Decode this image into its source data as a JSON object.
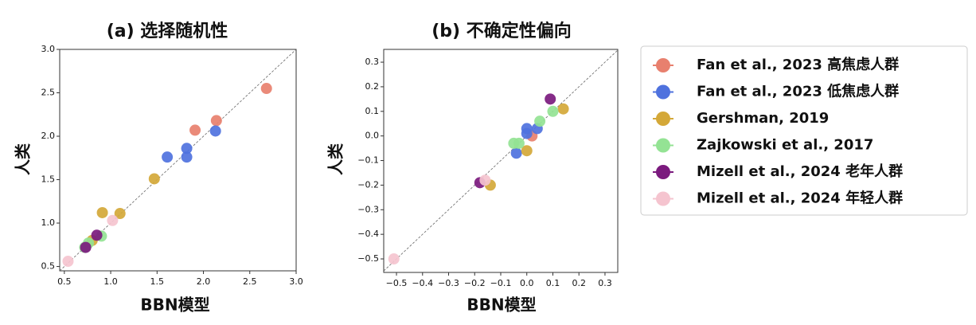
{
  "chart_data": [
    {
      "type": "scatter",
      "title": "(a) 选择随机性",
      "x_label": "BBN模型",
      "y_label": "人类",
      "xlim": [
        0.45,
        3.0
      ],
      "ylim": [
        0.45,
        3.0
      ],
      "xticks": [
        0.5,
        {
          "value": 1,
          "label": "1.0"
        },
        1.5,
        {
          "value": 2,
          "label": "2.0"
        },
        2.5,
        {
          "value": 3,
          "label": "3.0"
        }
      ],
      "yticks": [
        0.5,
        {
          "value": 1,
          "label": "1.0"
        },
        1.5,
        {
          "value": 2,
          "label": "2.0"
        },
        2.5,
        {
          "value": 3,
          "label": "3.0"
        }
      ],
      "series": [
        {
          "name": "Fan et al., 2023 高焦虑人群",
          "color": "#e8806e",
          "x": [
            2.68,
            1.91,
            2.14
          ],
          "values": [
            2.55,
            2.07,
            2.18
          ]
        },
        {
          "name": "Fan et al., 2023 低焦虑人群",
          "color": "#4f72de",
          "x": [
            1.61,
            1.82,
            1.82,
            2.13
          ],
          "values": [
            1.76,
            1.86,
            1.76,
            2.06
          ]
        },
        {
          "name": "Gershman, 2019",
          "color": "#d4a838",
          "x": [
            0.91,
            1.1,
            1.47,
            0.8
          ],
          "values": [
            1.12,
            1.11,
            1.51,
            0.8
          ]
        },
        {
          "name": "Zajkowski et al., 2017",
          "color": "#94e394",
          "x": [
            0.9,
            0.76,
            0.72
          ],
          "values": [
            0.85,
            0.77,
            0.72
          ]
        },
        {
          "name": "Mizell et al., 2024 老年人群",
          "color": "#7b1a7e",
          "x": [
            0.73,
            0.85
          ],
          "values": [
            0.72,
            0.86
          ]
        },
        {
          "name": "Mizell et al., 2024 年轻人群",
          "color": "#f5c4cf",
          "x": [
            0.54,
            1.02
          ],
          "values": [
            0.56,
            1.03
          ]
        }
      ]
    },
    {
      "type": "scatter",
      "title": "(b) 不确定性偏向",
      "x_label": "BBN模型",
      "y_label": "人类",
      "xlim": [
        -0.549,
        0.349
      ],
      "ylim": [
        -0.555,
        0.352
      ],
      "xticks": [
        {
          "value": -0.5,
          "label": "−0.5"
        },
        {
          "value": -0.4,
          "label": "−0.4"
        },
        {
          "value": -0.3,
          "label": "−0.3"
        },
        {
          "value": -0.2,
          "label": "−0.2"
        },
        {
          "value": -0.1,
          "label": "−0.1"
        },
        {
          "value": 0,
          "label": "0.0"
        },
        0.1,
        0.2,
        0.3
      ],
      "yticks": [
        {
          "value": -0.5,
          "label": "−0.5"
        },
        {
          "value": -0.4,
          "label": "−0.4"
        },
        {
          "value": -0.3,
          "label": "−0.3"
        },
        {
          "value": -0.2,
          "label": "−0.2"
        },
        {
          "value": -0.1,
          "label": "−0.1"
        },
        {
          "value": 0,
          "label": "0.0"
        },
        0.1,
        0.2,
        0.3
      ],
      "series": [
        {
          "color": "#e8806e",
          "x": [
            0.02
          ],
          "values": [
            0.0
          ]
        },
        {
          "color": "#4f72de",
          "x": [
            -0.04,
            0.0,
            0.04,
            0.0
          ],
          "values": [
            -0.07,
            0.03,
            0.03,
            0.01
          ]
        },
        {
          "color": "#d4a838",
          "x": [
            0.14,
            0.0,
            -0.14
          ],
          "values": [
            0.11,
            -0.06,
            -0.2
          ]
        },
        {
          "color": "#94e394",
          "x": [
            0.05,
            0.1,
            -0.03,
            -0.05
          ],
          "values": [
            0.06,
            0.1,
            -0.03,
            -0.03
          ]
        },
        {
          "color": "#7b1a7e",
          "x": [
            0.09,
            -0.18
          ],
          "values": [
            0.15,
            -0.19
          ]
        },
        {
          "color": "#f5c4cf",
          "x": [
            -0.51,
            -0.16
          ],
          "values": [
            -0.5,
            -0.18
          ]
        }
      ]
    }
  ]
}
